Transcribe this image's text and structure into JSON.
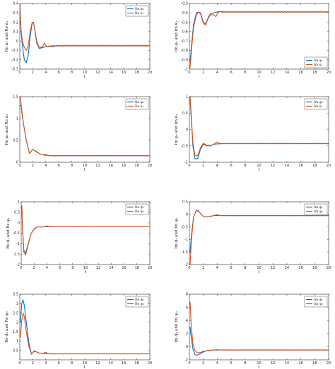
{
  "colors": {
    "blue": "#0072BD",
    "orange": "#D95319"
  },
  "chart_data": [
    {
      "type": "line",
      "xlabel": "t",
      "ylabel": "Re φ₁ and Re κ₁",
      "xlim": [
        0,
        20
      ],
      "ylim": [
        -0.3,
        0.4
      ],
      "xticks": [
        0,
        2,
        4,
        6,
        8,
        10,
        12,
        14,
        16,
        18,
        20
      ],
      "yticks": [
        -0.3,
        -0.2,
        -0.1,
        0,
        0.1,
        0.2,
        0.3,
        0.4
      ],
      "legend_position": "top-right",
      "series": [
        {
          "name": "Re φ₁",
          "color": "#0072BD",
          "x": [
            0,
            0.05,
            0.2,
            0.4,
            0.7,
            1,
            1.3,
            1.6,
            1.9,
            2.1,
            2.3,
            2.6,
            3,
            3.5,
            4,
            5,
            6,
            8,
            20
          ],
          "y": [
            0.4,
            0.3,
            0.1,
            -0.05,
            -0.2,
            -0.23,
            -0.15,
            0.05,
            0.19,
            0.2,
            0.12,
            -0.02,
            -0.08,
            -0.07,
            -0.06,
            -0.06,
            -0.05,
            -0.05,
            -0.05
          ]
        },
        {
          "name": "Re κ₁",
          "color": "#D95319",
          "x": [
            0,
            0.05,
            0.2,
            0.4,
            0.7,
            1,
            1.3,
            1.6,
            1.9,
            2.1,
            2.3,
            2.6,
            3,
            3.5,
            3.8,
            4,
            4.3,
            5,
            6,
            8,
            20
          ],
          "y": [
            0.4,
            0.28,
            0.12,
            0.0,
            -0.07,
            -0.1,
            -0.05,
            0.1,
            0.2,
            0.2,
            0.13,
            0.0,
            -0.07,
            -0.06,
            -0.02,
            -0.05,
            -0.06,
            -0.05,
            -0.05,
            -0.05,
            -0.05
          ],
          "ripple": 0.006
        }
      ]
    },
    {
      "type": "line",
      "xlabel": "t",
      "ylabel": "Im φ₁ and Im κ₁",
      "xlim": [
        0,
        20
      ],
      "ylim": [
        -1,
        -0.3
      ],
      "xticks": [
        0,
        2,
        4,
        6,
        8,
        10,
        12,
        14,
        16,
        18,
        20
      ],
      "yticks": [
        -1,
        -0.9,
        -0.8,
        -0.7,
        -0.6,
        -0.5,
        -0.4,
        -0.3
      ],
      "legend_position": "right",
      "series": [
        {
          "name": "Im φ₁",
          "color": "#0072BD",
          "x": [
            0,
            0.1,
            0.3,
            0.6,
            1,
            1.3,
            1.6,
            2,
            2.3,
            2.7,
            3,
            3.5,
            4,
            4.5,
            5,
            6,
            20
          ],
          "y": [
            -0.92,
            -0.92,
            -0.75,
            -0.52,
            -0.4,
            -0.39,
            -0.4,
            -0.5,
            -0.52,
            -0.45,
            -0.41,
            -0.4,
            -0.39,
            -0.385,
            -0.39,
            -0.39,
            -0.39
          ]
        },
        {
          "name": "Im κ₁",
          "color": "#D95319",
          "x": [
            0,
            0.1,
            0.3,
            0.6,
            1,
            1.3,
            1.6,
            2,
            2.3,
            2.7,
            3,
            3.5,
            3.8,
            4,
            4.3,
            5,
            6,
            20
          ],
          "y": [
            -0.98,
            -0.98,
            -0.8,
            -0.55,
            -0.42,
            -0.39,
            -0.41,
            -0.51,
            -0.53,
            -0.46,
            -0.42,
            -0.42,
            -0.44,
            -0.41,
            -0.39,
            -0.39,
            -0.39,
            -0.39
          ],
          "ripple": 0.006
        }
      ]
    },
    {
      "type": "line",
      "xlabel": "t",
      "ylabel": "Re φ₂ and Re κ₂",
      "xlim": [
        0,
        20
      ],
      "ylim": [
        0,
        1.5
      ],
      "xticks": [
        0,
        2,
        4,
        6,
        8,
        10,
        12,
        14,
        16,
        18,
        20
      ],
      "yticks": [
        0,
        0.5,
        1,
        1.5
      ],
      "legend_position": "top-right",
      "series": [
        {
          "name": "Re φ₂",
          "color": "#0072BD",
          "x": [
            0,
            0.05,
            0.2,
            0.3,
            0.6,
            1,
            1.5,
            2,
            2.5,
            3,
            3.5,
            4,
            5,
            6,
            8,
            20
          ],
          "y": [
            1.3,
            1.3,
            1.3,
            1.15,
            0.85,
            0.5,
            0.2,
            0.3,
            0.25,
            0.2,
            0.17,
            0.16,
            0.15,
            0.15,
            0.15,
            0.15
          ]
        },
        {
          "name": "Re κ₂",
          "color": "#D95319",
          "x": [
            0,
            0.05,
            0.2,
            0.3,
            0.6,
            1,
            1.5,
            2,
            2.5,
            3,
            3.5,
            4,
            4.3,
            5,
            6,
            8,
            20
          ],
          "y": [
            1.5,
            1.5,
            1.35,
            1.2,
            0.85,
            0.5,
            0.2,
            0.3,
            0.24,
            0.2,
            0.17,
            0.18,
            0.15,
            0.15,
            0.15,
            0.15,
            0.15
          ],
          "ripple": 0.006
        }
      ]
    },
    {
      "type": "line",
      "xlabel": "t",
      "ylabel": "Im φ₂ and Im κ₂",
      "xlim": [
        0,
        20
      ],
      "ylim": [
        -1,
        1
      ],
      "xticks": [
        0,
        2,
        4,
        6,
        8,
        10,
        12,
        14,
        16,
        18,
        20
      ],
      "yticks": [
        -1,
        -0.5,
        0,
        0.5,
        1
      ],
      "legend_position": "top-right",
      "series": [
        {
          "name": "Im φ₂",
          "color": "#0072BD",
          "x": [
            0,
            0.1,
            0.25,
            0.5,
            0.8,
            1.2,
            1.6,
            2,
            2.5,
            3,
            3.5,
            4,
            5,
            6,
            20
          ],
          "y": [
            0.9,
            0.9,
            0.4,
            -0.5,
            -0.9,
            -0.88,
            -0.6,
            -0.45,
            -0.5,
            -0.5,
            -0.45,
            -0.44,
            -0.43,
            -0.43,
            -0.43
          ]
        },
        {
          "name": "Im κ₂",
          "color": "#D95319",
          "x": [
            0,
            0.1,
            0.25,
            0.5,
            0.8,
            1.2,
            1.6,
            2,
            2.5,
            3,
            3.5,
            4,
            4.3,
            5,
            6,
            20
          ],
          "y": [
            1,
            1,
            0.5,
            -0.4,
            -0.8,
            -0.8,
            -0.55,
            -0.42,
            -0.48,
            -0.49,
            -0.45,
            -0.38,
            -0.43,
            -0.43,
            -0.43,
            -0.43
          ],
          "ripple": 0.008
        }
      ]
    },
    {
      "type": "line",
      "xlabel": "t",
      "ylabel": "Re ϕ₁ and Re ψ₁",
      "xlim": [
        0,
        20
      ],
      "ylim": [
        -2,
        1
      ],
      "xticks": [
        0,
        2,
        4,
        6,
        8,
        10,
        12,
        14,
        16,
        18,
        20
      ],
      "yticks": [
        -2,
        -1.5,
        -1,
        -0.5,
        0,
        0.5,
        1
      ],
      "legend_position": "top-right",
      "series": [
        {
          "name": "Re ϕ₁",
          "color": "#0072BD",
          "x": [
            0,
            0.1,
            0.2,
            0.4,
            0.7,
            1,
            1.5,
            2,
            2.5,
            3,
            3.5,
            4,
            5,
            6,
            20
          ],
          "y": [
            0.7,
            0.7,
            -0.2,
            -1.3,
            -1.45,
            -1.1,
            -0.55,
            -0.3,
            -0.2,
            -0.2,
            -0.2,
            -0.19,
            -0.18,
            -0.18,
            -0.18
          ]
        },
        {
          "name": "Re ψ₁",
          "color": "#D95319",
          "x": [
            0,
            0.1,
            0.2,
            0.4,
            0.7,
            1,
            1.5,
            2,
            2.5,
            3,
            3.5,
            4,
            4.3,
            5,
            6,
            20
          ],
          "y": [
            0.8,
            0.8,
            -0.3,
            -1.4,
            -1.55,
            -1.15,
            -0.55,
            -0.28,
            -0.2,
            -0.2,
            -0.2,
            -0.15,
            -0.18,
            -0.18,
            -0.18,
            -0.18
          ],
          "ripple": 0.01
        }
      ]
    },
    {
      "type": "line",
      "xlabel": "t",
      "ylabel": "Im ϕ₁ and Im ψ₁",
      "xlim": [
        0,
        20
      ],
      "ylim": [
        -2,
        0.5
      ],
      "xticks": [
        0,
        2,
        4,
        6,
        8,
        10,
        12,
        14,
        16,
        18,
        20
      ],
      "yticks": [
        -2,
        -1.5,
        -1,
        -0.5,
        0,
        0.5
      ],
      "legend_position": "top-right",
      "series": [
        {
          "name": "Im ϕ₁",
          "color": "#0072BD",
          "x": [
            0,
            0.1,
            0.3,
            0.6,
            1,
            1.3,
            1.7,
            2,
            2.5,
            3,
            3.5,
            4,
            5,
            6,
            20
          ],
          "y": [
            -1.5,
            -1.5,
            -0.8,
            -0.1,
            0.15,
            0.12,
            0.0,
            -0.08,
            -0.1,
            -0.08,
            -0.05,
            -0.05,
            -0.05,
            -0.05,
            -0.05
          ]
        },
        {
          "name": "Im ψ₁",
          "color": "#D95319",
          "x": [
            0,
            0.1,
            0.3,
            0.6,
            1,
            1.3,
            1.7,
            2,
            2.5,
            3,
            3.5,
            4,
            4.3,
            5,
            6,
            20
          ],
          "y": [
            -2,
            -2,
            -1.0,
            -0.1,
            0.17,
            0.13,
            0.0,
            -0.08,
            -0.1,
            -0.08,
            -0.05,
            0.0,
            -0.05,
            -0.05,
            -0.05,
            -0.05
          ],
          "ripple": 0.01
        }
      ]
    },
    {
      "type": "line",
      "xlabel": "t",
      "ylabel": "Re ϕ₂ and Re ψ₂",
      "xlim": [
        0,
        20
      ],
      "ylim": [
        0,
        3.5
      ],
      "xticks": [
        0,
        2,
        4,
        6,
        8,
        10,
        12,
        14,
        16,
        18,
        20
      ],
      "yticks": [
        0.5,
        1,
        1.5,
        2,
        2.5,
        3,
        3.5
      ],
      "legend_position": "top-right",
      "series": [
        {
          "name": "Re ϕ₂",
          "color": "#0072BD",
          "x": [
            0,
            0.1,
            0.3,
            0.5,
            0.7,
            1,
            1.4,
            1.8,
            2.2,
            2.6,
            3,
            3.5,
            4,
            5,
            6,
            20
          ],
          "y": [
            2.0,
            2.0,
            3.0,
            3.2,
            2.9,
            2.0,
            0.9,
            0.3,
            0.45,
            0.42,
            0.36,
            0.34,
            0.33,
            0.32,
            0.32,
            0.32
          ]
        },
        {
          "name": "Re ψ₂",
          "color": "#D95319",
          "x": [
            0,
            0.1,
            0.3,
            0.5,
            0.7,
            1,
            1.4,
            1.8,
            2.2,
            2.6,
            3,
            3.5,
            4,
            4.3,
            5,
            6,
            20
          ],
          "y": [
            1.2,
            1.2,
            2.1,
            2.5,
            2.3,
            1.5,
            0.7,
            0.3,
            0.48,
            0.42,
            0.36,
            0.34,
            0.4,
            0.33,
            0.32,
            0.32,
            0.32
          ],
          "ripple": 0.012
        }
      ]
    },
    {
      "type": "line",
      "xlabel": "t",
      "ylabel": "Im ϕ₂ and Im ψ₂",
      "xlim": [
        0,
        20
      ],
      "ylim": [
        -2,
        8
      ],
      "xticks": [
        0,
        2,
        4,
        6,
        8,
        10,
        12,
        14,
        16,
        18,
        20
      ],
      "yticks": [
        -2,
        0,
        2,
        4,
        6,
        8
      ],
      "legend_position": "top-right",
      "series": [
        {
          "name": "Im ϕ₂",
          "color": "#0072BD",
          "x": [
            0,
            0.1,
            0.25,
            0.5,
            0.8,
            1.1,
            1.5,
            2,
            2.5,
            3,
            3.5,
            4,
            5,
            6,
            20
          ],
          "y": [
            3,
            3,
            1.5,
            -0.3,
            -1.2,
            -1.3,
            -1.1,
            -0.8,
            -0.6,
            -0.55,
            -0.5,
            -0.5,
            -0.5,
            -0.5,
            -0.5
          ]
        },
        {
          "name": "Im ψ₂",
          "color": "#D95319",
          "x": [
            0,
            0.1,
            0.25,
            0.5,
            0.8,
            1.1,
            1.5,
            2,
            2.5,
            3,
            3.5,
            4,
            4.3,
            5,
            6,
            20
          ],
          "y": [
            6.8,
            6.8,
            3.5,
            0.5,
            -0.6,
            -0.9,
            -0.9,
            -0.7,
            -0.6,
            -0.55,
            -0.5,
            -0.45,
            -0.5,
            -0.5,
            -0.5,
            -0.5
          ],
          "ripple": 0.03
        }
      ]
    }
  ]
}
